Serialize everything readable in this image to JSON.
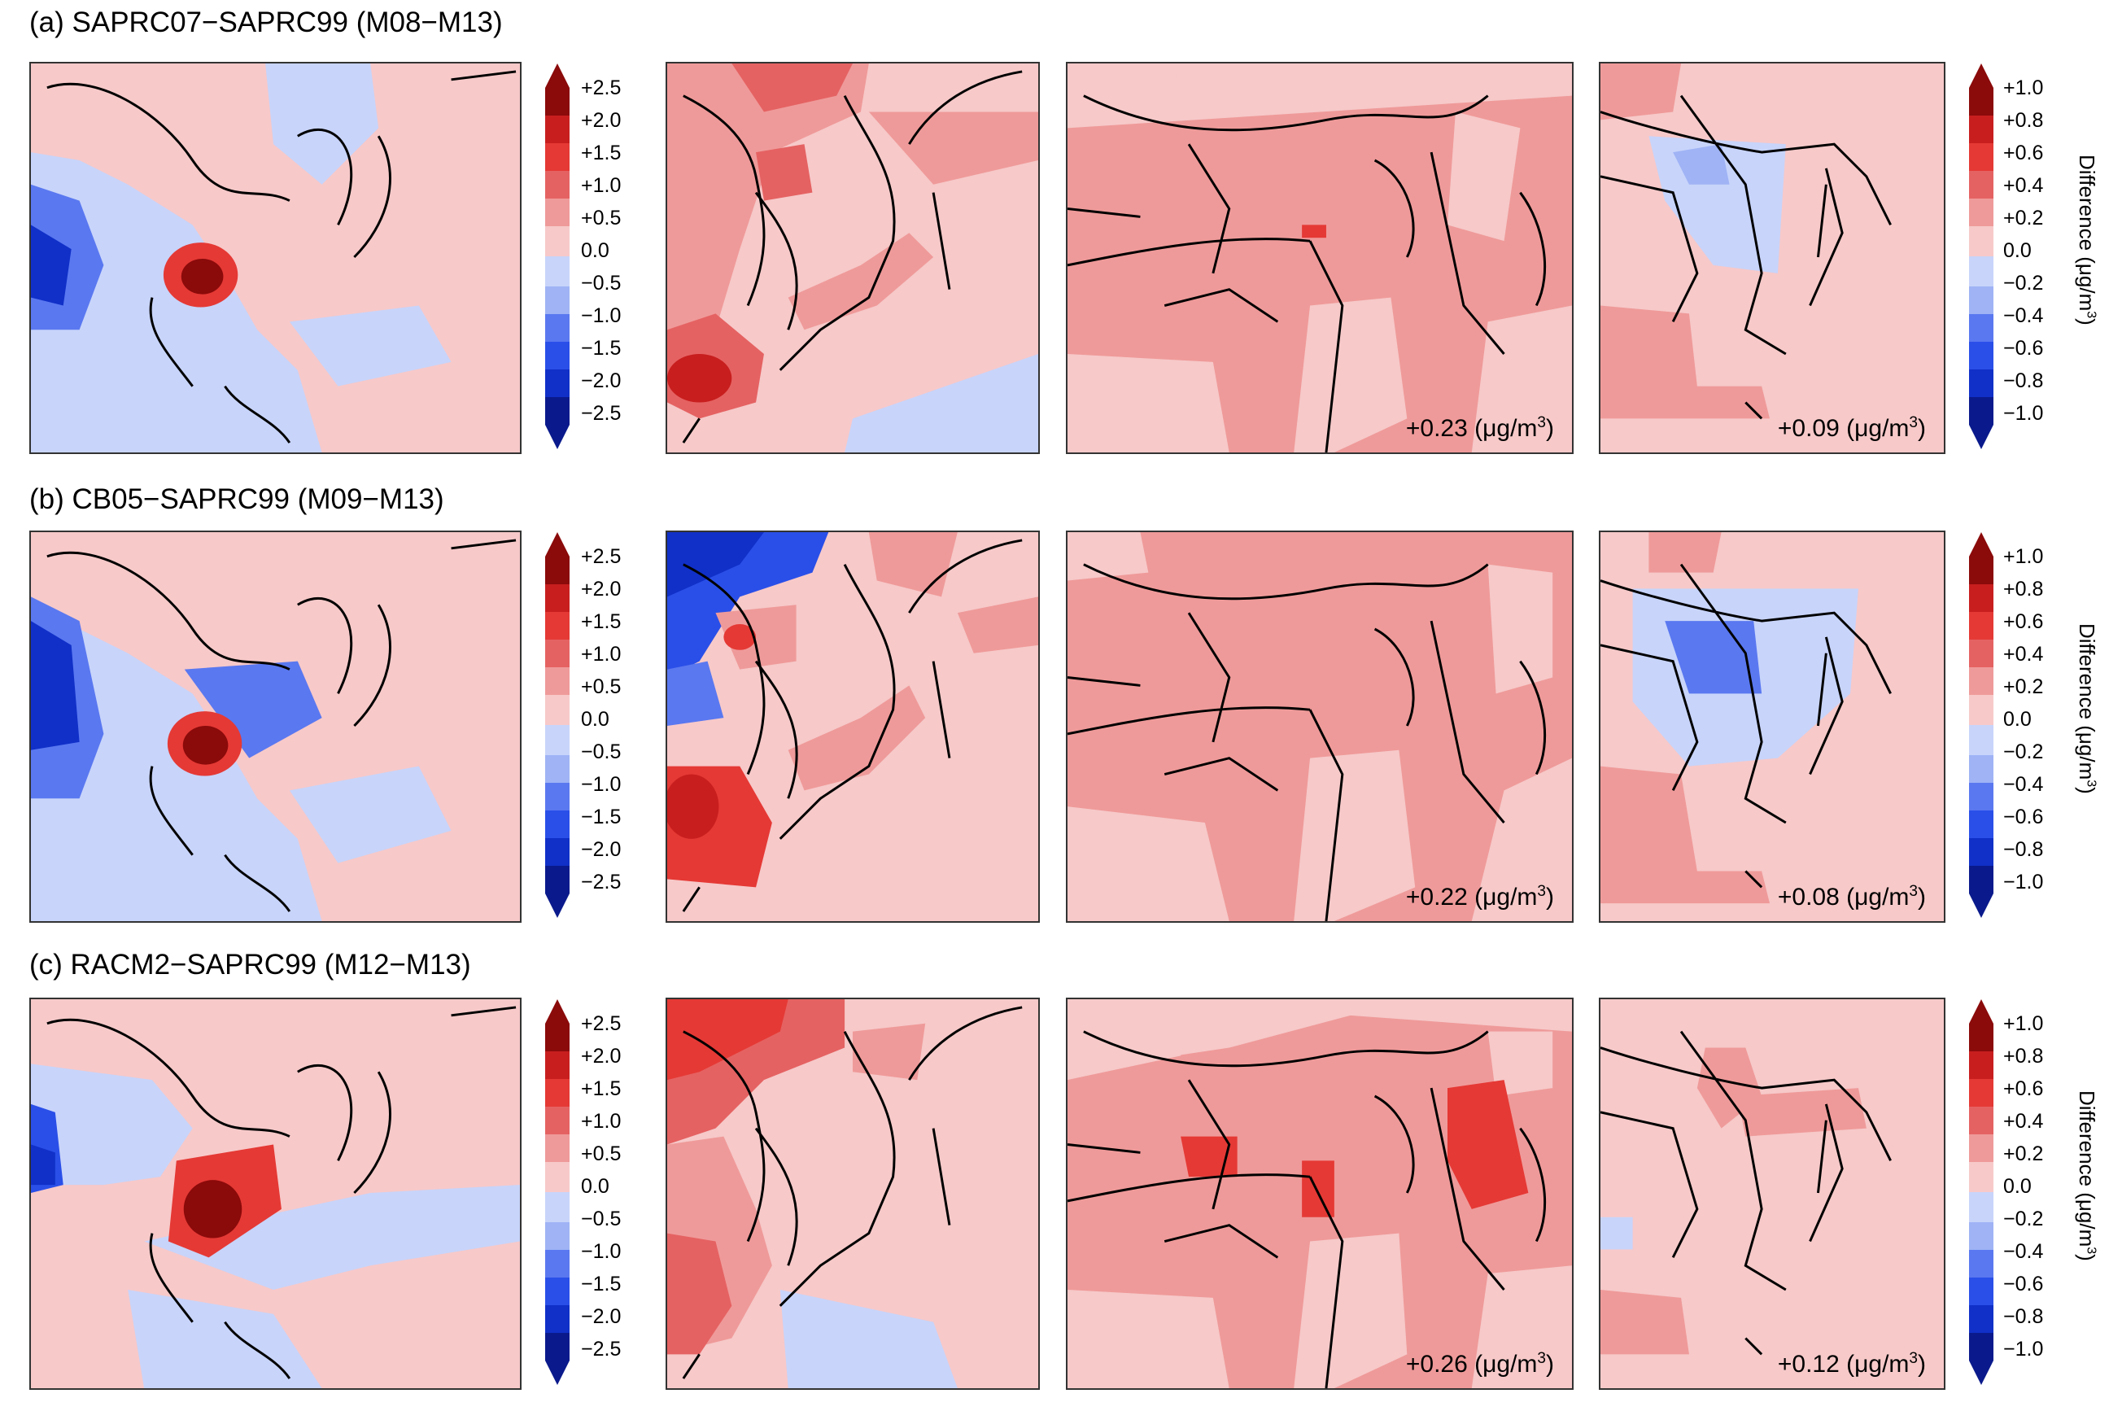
{
  "palette": {
    "neg": [
      "#0a1a8c",
      "#1030c8",
      "#2a4fe8",
      "#5a78f0",
      "#9fb3f5",
      "#c8d4fa"
    ],
    "pos": [
      "#f7c9c9",
      "#ef9a9a",
      "#e56262",
      "#e53935",
      "#c81e1e",
      "#8b0a0a"
    ]
  },
  "rows": [
    {
      "title": "(a) SAPRC07−SAPRC99 (M08−M13)",
      "averages": [
        "+0.23 (μg/m",
        "+0.09 (μg/m"
      ]
    },
    {
      "title": "(b) CB05−SAPRC99 (M09−M13)",
      "averages": [
        "+0.22 (μg/m",
        "+0.08 (μg/m"
      ]
    },
    {
      "title": "(c) RACM2−SAPRC99 (M12−M13)",
      "averages": [
        "+0.26 (μg/m",
        "+0.12 (μg/m"
      ]
    }
  ],
  "unit_tail": "3",
  "unit_close": ")",
  "left_colorbar": {
    "ticks": [
      "+2.5",
      "+2.0",
      "+1.5",
      "+1.0",
      "+0.5",
      "0.0",
      "−0.5",
      "−1.0",
      "−1.5",
      "−2.0",
      "−2.5"
    ]
  },
  "right_colorbar": {
    "ticks": [
      "+1.0",
      "+0.8",
      "+0.6",
      "+0.4",
      "+0.2",
      "0.0",
      "−0.2",
      "−0.4",
      "−0.6",
      "−0.8",
      "−1.0"
    ],
    "label": "Difference (μg/m",
    "label_sup": "3",
    "label_close": ")"
  }
}
